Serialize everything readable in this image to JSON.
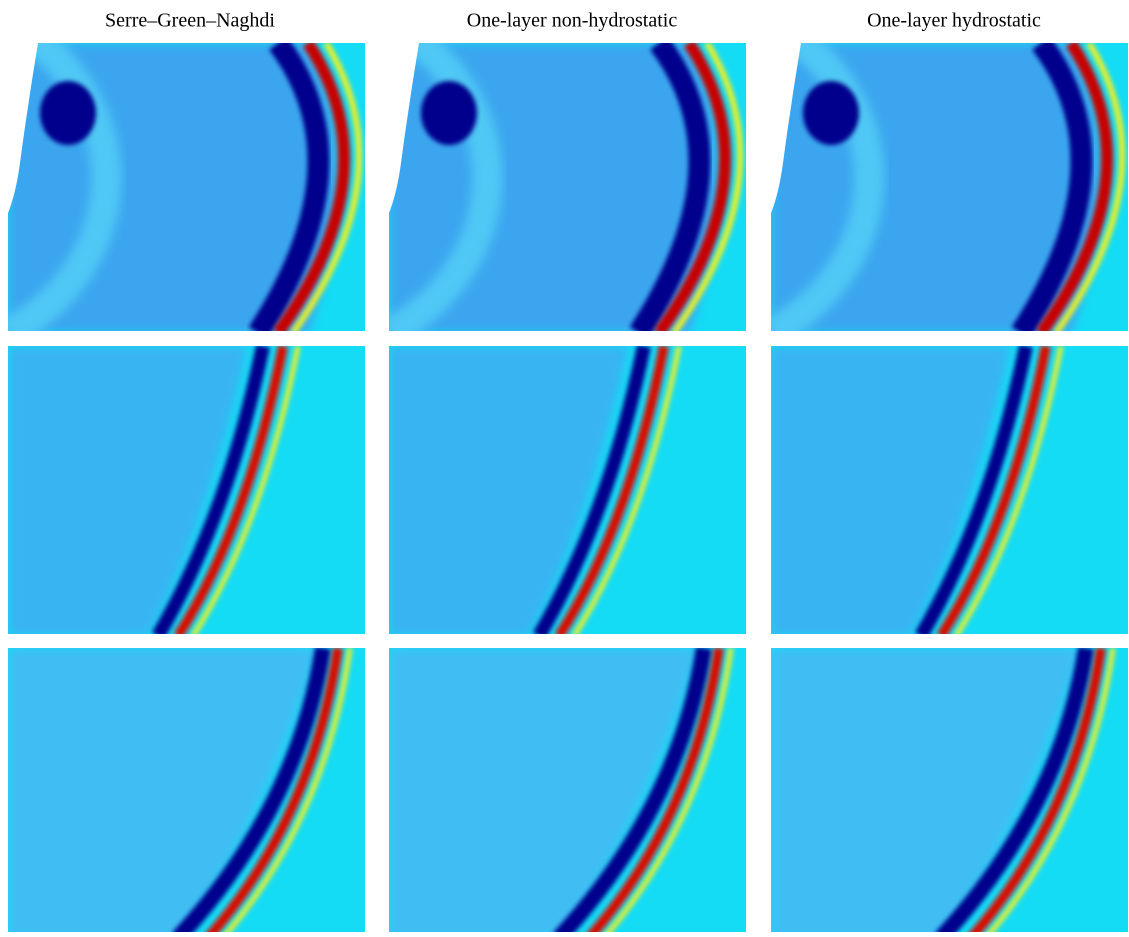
{
  "column_titles": [
    "Serre–Green–Naghdi",
    "One-layer non-hydrostatic",
    "One-layer hydrostatic"
  ]
}
